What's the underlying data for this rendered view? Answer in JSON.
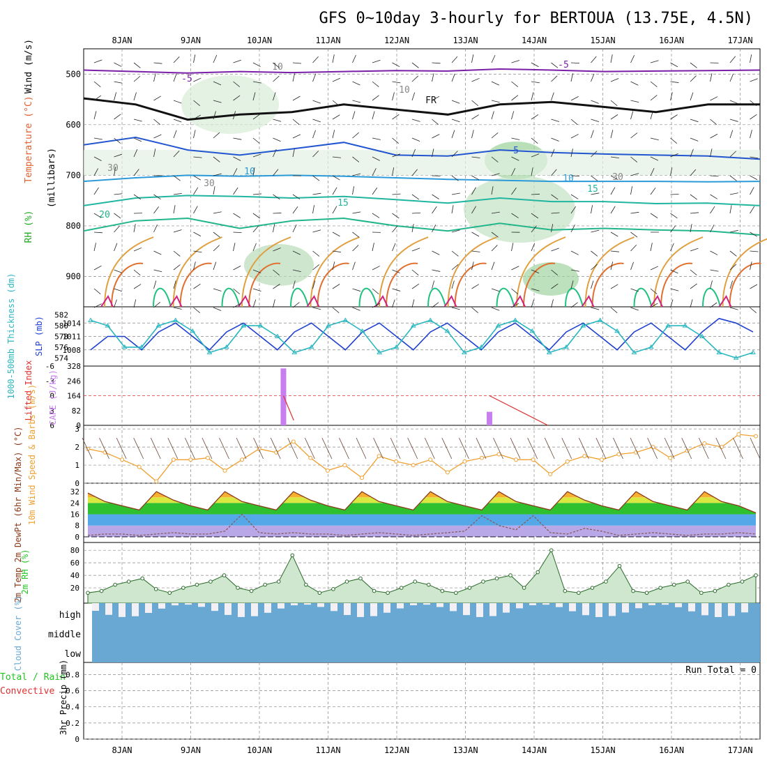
{
  "title": "GFS 0~10day 3-hourly for BERTOUA (13.75E, 4.5N)",
  "dates": [
    "8JAN",
    "9JAN",
    "10JAN",
    "11JAN",
    "12JAN",
    "13JAN",
    "14JAN",
    "15JAN",
    "16JAN",
    "17JAN"
  ],
  "colors": {
    "sky": "#6aa8d4",
    "cloud_clear": "#f2eff5",
    "rh_green": "#22c522",
    "temp_line": "#8b3a1a",
    "cape": "#c77ff0",
    "li": "#e03030",
    "slp": "#1f3fcf",
    "thick": "#2ab7c0",
    "wind10": "#f0a030"
  },
  "chart_data": [
    {
      "type": "contour",
      "panel": "upper-air",
      "ylabel_parts": [
        "RH (%)",
        "Temperature (°C)",
        "Wind (m/s)"
      ],
      "y_axis": "(millibars)",
      "ylim": [
        450,
        960
      ],
      "yticks": [
        500,
        600,
        700,
        800,
        900
      ],
      "contour_labels": [
        "-5",
        "-5",
        "FR",
        "5",
        "10",
        "10",
        "15",
        "15",
        "20",
        "10",
        "10",
        "30",
        "30",
        "30"
      ],
      "isotherms": [
        {
          "label": "-5",
          "values": [
            492,
            495,
            498,
            495,
            497,
            495,
            493,
            494,
            490,
            492,
            495,
            494,
            493,
            492
          ]
        },
        {
          "label": "FR",
          "values": [
            548,
            560,
            590,
            580,
            575,
            560,
            570,
            580,
            560,
            555,
            565,
            575,
            560,
            560
          ]
        },
        {
          "label": "5",
          "values": [
            640,
            625,
            650,
            660,
            648,
            635,
            660,
            662,
            650,
            655,
            658,
            660,
            662,
            668
          ]
        },
        {
          "label": "10",
          "values": [
            712,
            705,
            700,
            702,
            700,
            702,
            705,
            708,
            710,
            712,
            712,
            712,
            713,
            712
          ]
        },
        {
          "label": "15",
          "values": [
            760,
            745,
            740,
            742,
            745,
            742,
            748,
            755,
            745,
            752,
            752,
            756,
            755,
            760
          ]
        },
        {
          "label": "20",
          "values": [
            810,
            790,
            785,
            805,
            790,
            785,
            800,
            810,
            795,
            808,
            805,
            808,
            810,
            818
          ]
        }
      ]
    },
    {
      "type": "line",
      "panel": "slp-thickness",
      "ylabel_left": "1000-500mb Thickness (dm)",
      "ylabel_right": "SLP (mb)",
      "left_ticks": [
        574,
        576,
        578,
        580,
        582
      ],
      "right_ticks": [
        1008,
        1011,
        1014
      ],
      "series": [
        {
          "name": "SLP",
          "values": [
            1008,
            1011,
            1011,
            1008,
            1012,
            1014,
            1011,
            1008,
            1012,
            1014,
            1011,
            1008,
            1012,
            1014,
            1011,
            1008,
            1012,
            1014,
            1011,
            1008,
            1012,
            1014,
            1011,
            1008,
            1012,
            1014,
            1011,
            1008,
            1012,
            1014,
            1011,
            1008,
            1012,
            1014,
            1011,
            1008,
            1012,
            1015,
            1014,
            1012
          ]
        },
        {
          "name": "Thickness",
          "values": [
            581,
            580,
            576,
            576,
            580,
            581,
            579,
            575,
            576,
            580,
            580,
            578,
            575,
            576,
            580,
            581,
            579,
            575,
            576,
            580,
            581,
            579,
            575,
            576,
            580,
            581,
            579,
            575,
            576,
            580,
            581,
            579,
            575,
            576,
            580,
            580,
            578,
            575,
            574,
            575
          ]
        }
      ]
    },
    {
      "type": "bar",
      "panel": "cape-li",
      "ylabel_left": "Lifted Index",
      "ylabel_right": "CAPE (J/kg)",
      "li_ticks": [
        -6,
        -3,
        0,
        3,
        6
      ],
      "cape_ticks": [
        0,
        82,
        164,
        246,
        328
      ],
      "cape_bars": [
        {
          "x": 2.35,
          "value": 315
        },
        {
          "x": 5.35,
          "value": 75
        }
      ],
      "lifted_index": [
        {
          "x": 2.35,
          "value": 0
        },
        {
          "x": 2.5,
          "value": 5
        },
        {
          "x": 5.35,
          "value": 0
        },
        {
          "x": 6.2,
          "value": 6
        }
      ]
    },
    {
      "type": "line",
      "panel": "wind10m",
      "ylabel": "10m Wind Speed & Barbs (m/s)",
      "yticks": [
        0,
        1,
        2,
        3
      ],
      "values": [
        1.9,
        1.7,
        1.3,
        0.9,
        0.1,
        1.3,
        1.3,
        1.4,
        0.7,
        1.3,
        1.9,
        1.7,
        2.3,
        1.4,
        0.7,
        1.0,
        0.3,
        1.5,
        1.2,
        1.0,
        1.3,
        0.6,
        1.2,
        1.4,
        1.6,
        1.3,
        1.3,
        0.5,
        1.2,
        1.5,
        1.3,
        1.6,
        1.7,
        2.0,
        1.4,
        1.8,
        2.2,
        2.0,
        2.7,
        2.6
      ]
    },
    {
      "type": "area",
      "panel": "temp2m",
      "ylabel": "2m Temp 2m DewPt (6hr Min/Max) (°C)",
      "yticks": [
        0,
        8,
        16,
        24,
        32
      ],
      "temp": [
        31,
        25,
        22,
        19,
        32,
        26,
        22,
        19,
        32,
        25,
        22,
        19,
        32,
        26,
        22,
        19,
        32,
        25,
        22,
        19,
        32,
        25,
        22,
        19,
        32,
        25,
        22,
        19,
        32,
        26,
        22,
        19,
        32,
        25,
        22,
        19,
        32,
        25,
        22,
        17
      ],
      "dewpt": [
        1,
        2,
        2,
        1,
        2,
        3,
        2,
        2,
        4,
        16,
        3,
        2,
        3,
        2,
        2,
        1,
        2,
        3,
        2,
        1,
        2,
        3,
        4,
        15,
        8,
        5,
        15,
        3,
        2,
        6,
        4,
        1,
        2,
        3,
        2,
        1,
        2,
        2,
        3,
        2
      ]
    },
    {
      "type": "area",
      "panel": "rh2m",
      "ylabel": "2m RH (%)",
      "yticks": [
        20,
        40,
        60,
        80
      ],
      "values": [
        12,
        15,
        25,
        30,
        35,
        18,
        12,
        20,
        25,
        30,
        40,
        20,
        15,
        25,
        30,
        72,
        25,
        12,
        18,
        30,
        35,
        15,
        12,
        20,
        30,
        25,
        15,
        12,
        20,
        30,
        35,
        40,
        20,
        45,
        80,
        15,
        12,
        20,
        30,
        55,
        15,
        12,
        20,
        25,
        30,
        12,
        15,
        25,
        30,
        40
      ]
    },
    {
      "type": "heatmap",
      "panel": "cloud",
      "ylabel": "Cloud Cover (%)",
      "levels": [
        "high",
        "middle",
        "low"
      ]
    },
    {
      "type": "bar",
      "panel": "precip",
      "ylabel": "3hr Precip (mm)",
      "legend_left": [
        "Total / Rain",
        "Convective"
      ],
      "yticks": [
        "0",
        "0.2",
        "0.4",
        "0.6",
        "0.8"
      ],
      "run_total": "Run Total = 0",
      "values": []
    }
  ]
}
